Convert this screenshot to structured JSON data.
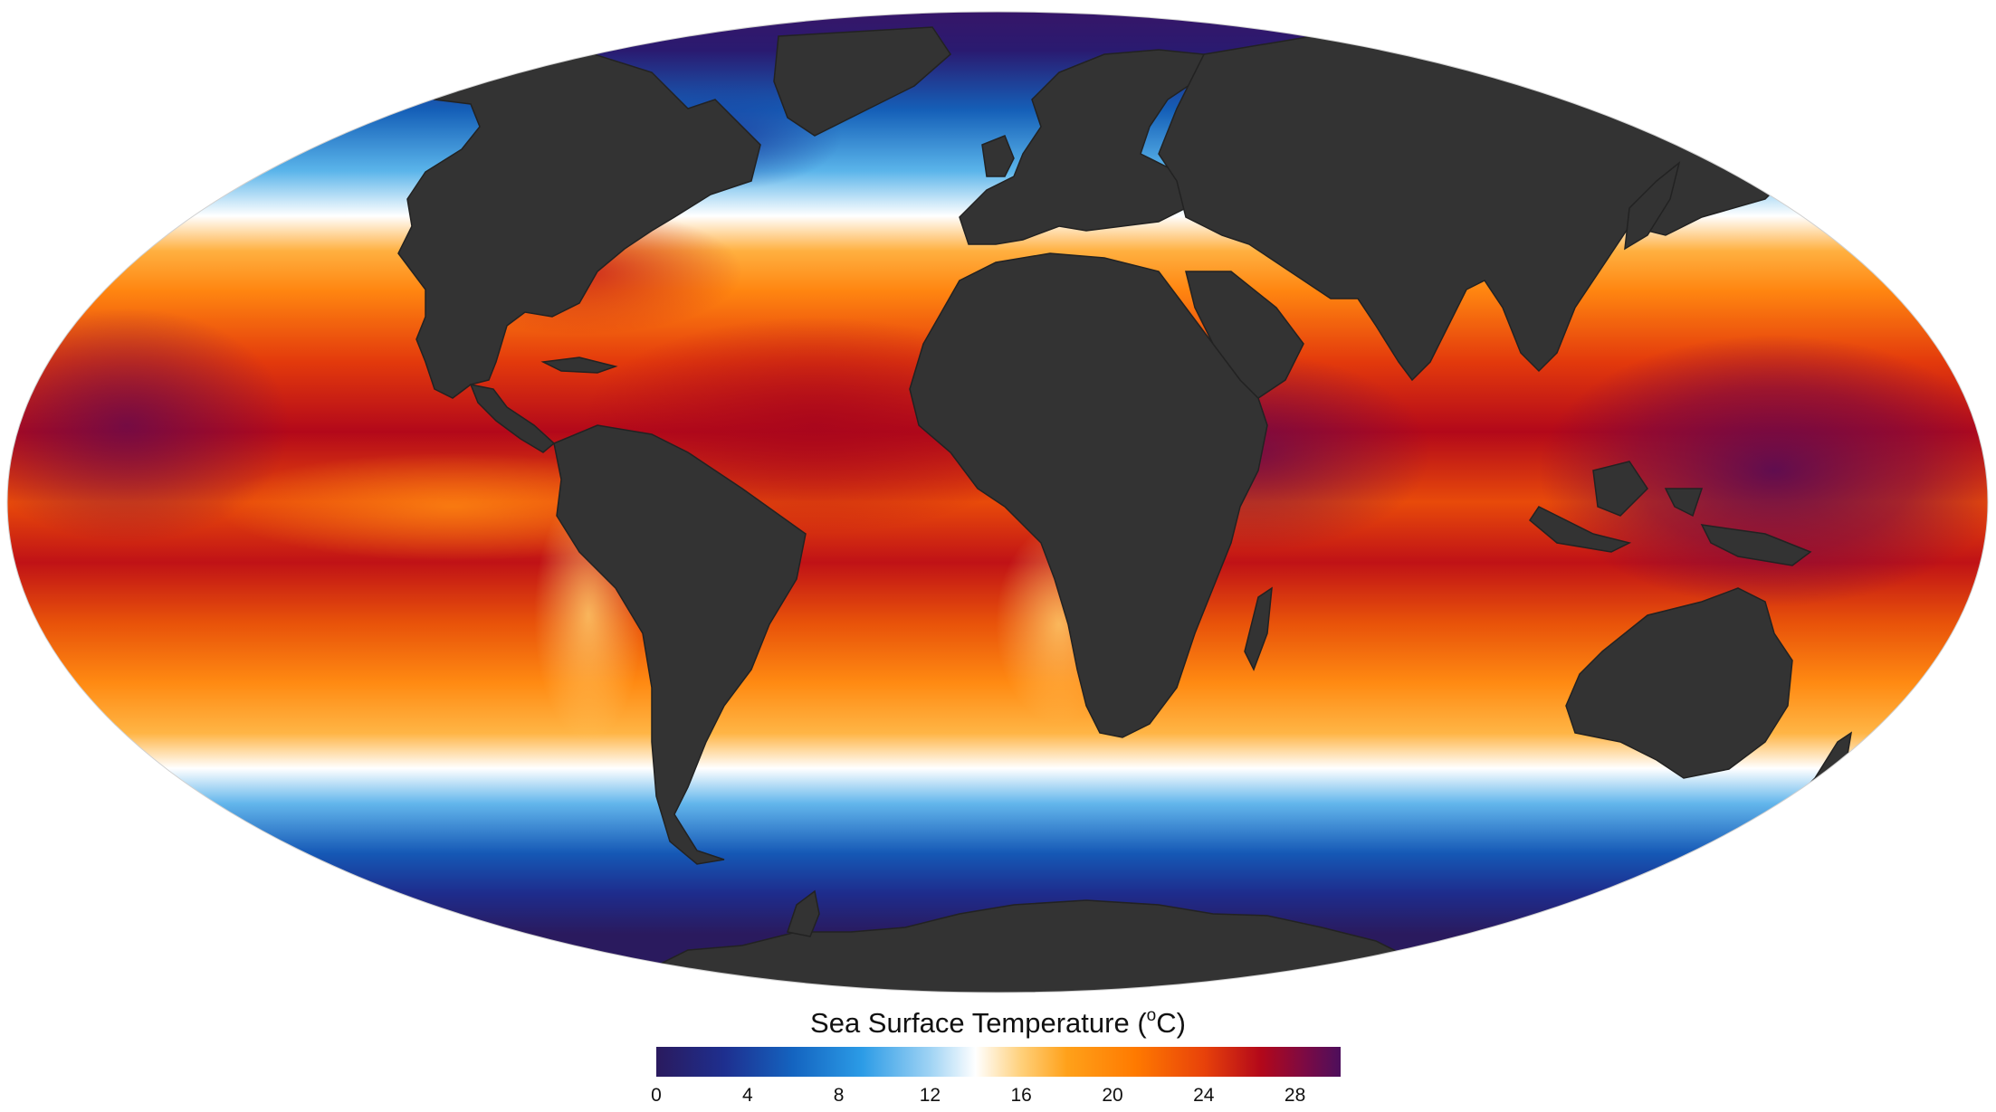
{
  "map": {
    "projection": "mollweide",
    "ocean_field": "sea-surface-temperature",
    "land_color": "#333333",
    "land_border_color": "#222222"
  },
  "legend": {
    "title_text": "Sea Surface Temperature (",
    "title_unit_sup": "o",
    "title_unit_tail": "C)",
    "range": [
      0,
      30
    ],
    "ticks": [
      "0",
      "4",
      "8",
      "12",
      "16",
      "20",
      "24",
      "28"
    ],
    "tick_values": [
      0,
      4,
      8,
      12,
      16,
      20,
      24,
      28
    ],
    "color_stops": [
      {
        "value": 0,
        "color": "#2a1a5e"
      },
      {
        "value": 3,
        "color": "#1e2f8f"
      },
      {
        "value": 6,
        "color": "#1464c0"
      },
      {
        "value": 9,
        "color": "#2b9be6"
      },
      {
        "value": 12,
        "color": "#9fd3f4"
      },
      {
        "value": 14,
        "color": "#ffffff"
      },
      {
        "value": 16,
        "color": "#ffd07a"
      },
      {
        "value": 18,
        "color": "#ffa11a"
      },
      {
        "value": 21,
        "color": "#ff7a00"
      },
      {
        "value": 24,
        "color": "#e8420a"
      },
      {
        "value": 26.5,
        "color": "#b3081a"
      },
      {
        "value": 28.5,
        "color": "#7a0a45"
      },
      {
        "value": 30,
        "color": "#4d0f5c"
      }
    ]
  }
}
